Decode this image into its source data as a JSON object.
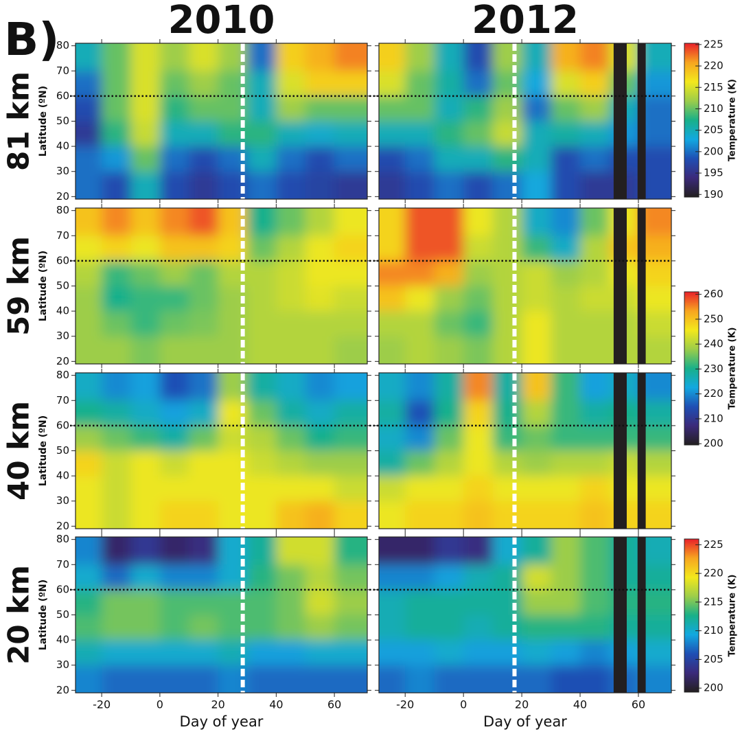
{
  "panel_label": "B)",
  "colormap": [
    "#231f20",
    "#3b2a7a",
    "#1f4fb4",
    "#12a8e0",
    "#19b089",
    "#9ccd4a",
    "#f3e81c",
    "#f7a520",
    "#e8202a"
  ],
  "colorbars": [
    {
      "label": "Temperature (K)",
      "zlim": [
        189.4,
        225.3
      ],
      "zticks": [
        190,
        195,
        200,
        205,
        210,
        215,
        220,
        225
      ]
    },
    {
      "label": "Temperature (K)",
      "zlim": [
        199.5,
        261
      ],
      "zticks": [
        200,
        210,
        220,
        230,
        240,
        250,
        260
      ]
    },
    {
      "label": "Temperature (K)",
      "zlim": [
        199.3,
        226
      ],
      "zticks": [
        200,
        205,
        210,
        215,
        220,
        225
      ]
    }
  ],
  "chart_data": [
    {
      "type": "heatmap",
      "title": "2010",
      "row_label": "81 km",
      "ylabel": "Latitude (ºN)",
      "colorbar": 0,
      "x": [
        -25,
        -15,
        -5,
        5,
        15,
        25,
        35,
        45,
        55,
        65
      ],
      "y": [
        75,
        65,
        55,
        45,
        35,
        25
      ],
      "z": [
        [
          205,
          210,
          215,
          212,
          215,
          212,
          200,
          218,
          220,
          222
        ],
        [
          200,
          210,
          215,
          210,
          212,
          210,
          205,
          215,
          218,
          218
        ],
        [
          198,
          210,
          215,
          208,
          210,
          210,
          205,
          212,
          210,
          210
        ],
        [
          196,
          208,
          214,
          205,
          205,
          208,
          208,
          205,
          204,
          205
        ],
        [
          200,
          202,
          210,
          200,
          198,
          200,
          205,
          200,
          198,
          200
        ],
        [
          200,
          198,
          205,
          198,
          196,
          198,
          200,
          198,
          197,
          196
        ]
      ],
      "xlim": [
        -29,
        71.3
      ],
      "ylim": [
        19,
        81
      ],
      "xticks": [
        -20,
        0,
        20,
        40,
        60
      ],
      "yticks": [
        20,
        30,
        40,
        50,
        60,
        70,
        80
      ],
      "ref_latitude": 60,
      "event_day": 28.5
    },
    {
      "type": "heatmap",
      "title": "2012",
      "colorbar": 0,
      "x": [
        -25,
        -15,
        -5,
        5,
        15,
        25,
        35,
        45,
        55,
        65
      ],
      "y": [
        75,
        65,
        55,
        45,
        35,
        25
      ],
      "z": [
        [
          218,
          212,
          205,
          198,
          212,
          205,
          220,
          222,
          215,
          205
        ],
        [
          215,
          210,
          206,
          200,
          210,
          203,
          215,
          218,
          210,
          202
        ],
        [
          210,
          210,
          205,
          208,
          212,
          200,
          210,
          212,
          205,
          200
        ],
        [
          205,
          205,
          208,
          210,
          214,
          205,
          206,
          205,
          202,
          200
        ],
        [
          198,
          200,
          205,
          205,
          208,
          205,
          198,
          200,
          198,
          198
        ],
        [
          196,
          198,
          200,
          198,
          200,
          203,
          198,
          196,
          196,
          198
        ]
      ],
      "xlim": [
        -29,
        71.3
      ],
      "ylim": [
        19,
        81
      ],
      "xticks": [
        -20,
        0,
        20,
        40,
        60
      ],
      "yticks": [
        20,
        30,
        40,
        50,
        60,
        70,
        80
      ],
      "ref_latitude": 60,
      "event_day": 17.5,
      "missing_days": [
        [
          51.5,
          56
        ],
        [
          59.7,
          62.5
        ]
      ]
    },
    {
      "type": "heatmap",
      "row_label": "59 km",
      "ylabel": "Latitude (ºN)",
      "colorbar": 1,
      "x": [
        -25,
        -15,
        -5,
        5,
        15,
        25,
        35,
        45,
        55,
        65
      ],
      "y": [
        75,
        65,
        55,
        45,
        35,
        25
      ],
      "z": [
        [
          250,
          255,
          250,
          255,
          258,
          250,
          230,
          235,
          240,
          245
        ],
        [
          245,
          248,
          245,
          250,
          250,
          248,
          235,
          240,
          245,
          248
        ],
        [
          240,
          232,
          235,
          238,
          235,
          240,
          240,
          242,
          245,
          245
        ],
        [
          238,
          230,
          232,
          232,
          235,
          238,
          240,
          242,
          244,
          242
        ],
        [
          238,
          235,
          232,
          235,
          236,
          238,
          240,
          240,
          240,
          240
        ],
        [
          238,
          238,
          236,
          238,
          238,
          238,
          240,
          240,
          240,
          238
        ]
      ],
      "xlim": [
        -29,
        71.3
      ],
      "ylim": [
        19,
        81
      ],
      "xticks": [
        -20,
        0,
        20,
        40,
        60
      ],
      "yticks": [
        20,
        30,
        40,
        50,
        60,
        70,
        80
      ],
      "ref_latitude": 60,
      "event_day": 28.5
    },
    {
      "type": "heatmap",
      "colorbar": 1,
      "x": [
        -25,
        -15,
        -5,
        5,
        15,
        25,
        35,
        45,
        55,
        65
      ],
      "y": [
        75,
        65,
        55,
        45,
        35,
        25
      ],
      "z": [
        [
          248,
          258,
          258,
          245,
          240,
          225,
          220,
          235,
          245,
          255
        ],
        [
          248,
          258,
          258,
          242,
          240,
          232,
          225,
          240,
          250,
          252
        ],
        [
          255,
          255,
          252,
          238,
          240,
          242,
          238,
          240,
          245,
          248
        ],
        [
          250,
          245,
          238,
          235,
          240,
          242,
          240,
          242,
          242,
          245
        ],
        [
          240,
          240,
          235,
          232,
          240,
          245,
          240,
          240,
          240,
          242
        ],
        [
          238,
          240,
          238,
          236,
          240,
          245,
          240,
          240,
          240,
          240
        ]
      ],
      "xlim": [
        -29,
        71.3
      ],
      "ylim": [
        19,
        81
      ],
      "xticks": [
        -20,
        0,
        20,
        40,
        60
      ],
      "yticks": [
        20,
        30,
        40,
        50,
        60,
        70,
        80
      ],
      "ref_latitude": 60,
      "event_day": 17.5,
      "missing_days": [
        [
          51.5,
          56
        ],
        [
          59.7,
          62.5
        ]
      ]
    },
    {
      "type": "heatmap",
      "row_label": "40 km",
      "ylabel": "Latitude (ºN)",
      "colorbar": 1,
      "x": [
        -25,
        -15,
        -5,
        5,
        15,
        25,
        35,
        45,
        55,
        65
      ],
      "y": [
        75,
        65,
        55,
        45,
        35,
        25
      ],
      "z": [
        [
          225,
          220,
          222,
          215,
          218,
          238,
          228,
          225,
          220,
          222
        ],
        [
          230,
          228,
          225,
          222,
          225,
          245,
          235,
          228,
          225,
          228
        ],
        [
          238,
          235,
          232,
          228,
          235,
          242,
          240,
          235,
          230,
          232
        ],
        [
          248,
          242,
          245,
          242,
          245,
          245,
          242,
          240,
          238,
          238
        ],
        [
          245,
          242,
          245,
          245,
          245,
          245,
          245,
          245,
          245,
          242
        ],
        [
          245,
          242,
          245,
          248,
          248,
          245,
          245,
          250,
          252,
          248
        ]
      ],
      "xlim": [
        -29,
        71.3
      ],
      "ylim": [
        19,
        81
      ],
      "xticks": [
        -20,
        0,
        20,
        40,
        60
      ],
      "yticks": [
        20,
        30,
        40,
        50,
        60,
        70,
        80
      ],
      "ref_latitude": 60,
      "event_day": 28.5
    },
    {
      "type": "heatmap",
      "colorbar": 1,
      "x": [
        -25,
        -15,
        -5,
        5,
        15,
        25,
        35,
        45,
        55,
        65
      ],
      "y": [
        75,
        65,
        55,
        45,
        35,
        25
      ],
      "z": [
        [
          225,
          220,
          228,
          255,
          228,
          250,
          232,
          222,
          225,
          220
        ],
        [
          228,
          215,
          230,
          248,
          230,
          240,
          232,
          228,
          230,
          228
        ],
        [
          225,
          220,
          235,
          245,
          232,
          235,
          232,
          232,
          232,
          232
        ],
        [
          228,
          235,
          240,
          245,
          240,
          238,
          240,
          240,
          242,
          240
        ],
        [
          242,
          245,
          245,
          248,
          245,
          245,
          245,
          248,
          245,
          245
        ],
        [
          245,
          248,
          248,
          250,
          248,
          248,
          248,
          250,
          248,
          248
        ]
      ],
      "xlim": [
        -29,
        71.3
      ],
      "ylim": [
        19,
        81
      ],
      "xticks": [
        -20,
        0,
        20,
        40,
        60
      ],
      "yticks": [
        20,
        30,
        40,
        50,
        60,
        70,
        80
      ],
      "ref_latitude": 60,
      "event_day": 17.5,
      "missing_days": [
        [
          51.5,
          56
        ],
        [
          59.7,
          62.5
        ]
      ]
    },
    {
      "type": "heatmap",
      "row_label": "20 km",
      "ylabel": "Latitude (ºN)",
      "xlabel": "Day of year",
      "colorbar": 2,
      "x": [
        -25,
        -15,
        -5,
        5,
        15,
        25,
        35,
        45,
        55,
        65
      ],
      "y": [
        75,
        65,
        55,
        45,
        35,
        25
      ],
      "z": [
        [
          208,
          202,
          204,
          202,
          203,
          210,
          212,
          218,
          218,
          213
        ],
        [
          210,
          207,
          210,
          208,
          208,
          210,
          213,
          215,
          217,
          215
        ],
        [
          213,
          215,
          215,
          214,
          214,
          214,
          214,
          215,
          218,
          216
        ],
        [
          214,
          215,
          215,
          214,
          215,
          214,
          214,
          215,
          216,
          215
        ],
        [
          211,
          210,
          210,
          210,
          210,
          211,
          209,
          209,
          210,
          210
        ],
        [
          208,
          207,
          207,
          207,
          207,
          208,
          207,
          207,
          207,
          207
        ]
      ],
      "xlim": [
        -29,
        71.3
      ],
      "ylim": [
        19,
        81
      ],
      "xticks": [
        -20,
        0,
        20,
        40,
        60
      ],
      "yticks": [
        20,
        30,
        40,
        50,
        60,
        70,
        80
      ],
      "ref_latitude": 60,
      "event_day": 28.5
    },
    {
      "type": "heatmap",
      "xlabel": "Day of year",
      "colorbar": 2,
      "x": [
        -25,
        -15,
        -5,
        5,
        15,
        25,
        35,
        45,
        55,
        65
      ],
      "y": [
        75,
        65,
        55,
        45,
        35,
        25
      ],
      "z": [
        [
          202,
          202,
          204,
          203,
          210,
          212,
          216,
          214,
          212,
          211
        ],
        [
          208,
          208,
          209,
          211,
          212,
          218,
          216,
          214,
          212,
          212
        ],
        [
          211,
          212,
          212,
          212,
          212,
          216,
          216,
          214,
          213,
          213
        ],
        [
          211,
          212,
          212,
          211,
          212,
          213,
          213,
          213,
          212,
          212
        ],
        [
          209,
          209,
          210,
          209,
          209,
          210,
          209,
          208,
          209,
          210
        ],
        [
          207,
          208,
          207,
          207,
          207,
          207,
          206,
          206,
          207,
          208
        ]
      ],
      "xlim": [
        -29,
        71.3
      ],
      "ylim": [
        19,
        81
      ],
      "xticks": [
        -20,
        0,
        20,
        40,
        60
      ],
      "yticks": [
        20,
        30,
        40,
        50,
        60,
        70,
        80
      ],
      "ref_latitude": 60,
      "event_day": 17.5,
      "missing_days": [
        [
          51.5,
          56
        ],
        [
          59.7,
          62.5
        ]
      ]
    }
  ]
}
